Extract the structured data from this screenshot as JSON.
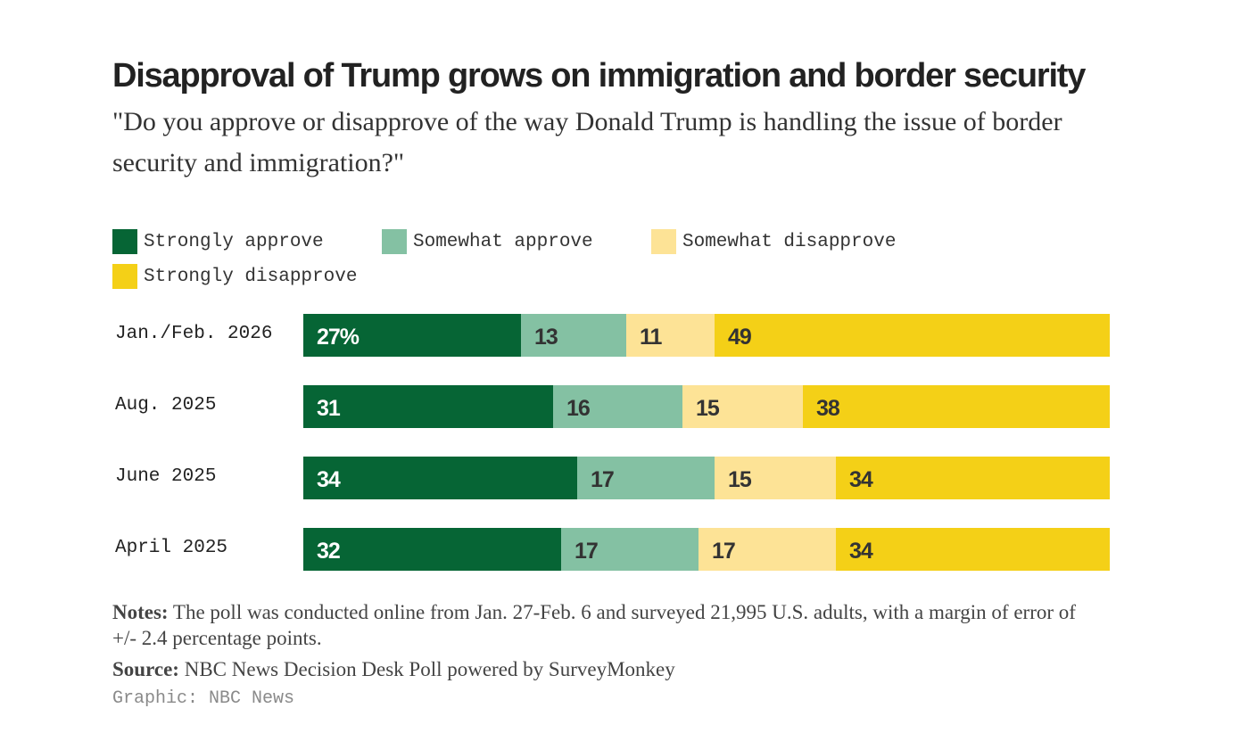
{
  "header": {
    "title": "Disapproval of Trump grows on immigration and border security",
    "subtitle": "\"Do you approve or disapprove of the way Donald Trump is handling the issue of border security and immigration?\""
  },
  "legend": {
    "items": [
      {
        "label": "Strongly approve",
        "color": "#066535"
      },
      {
        "label": "Somewhat approve",
        "color": "#84c1a3"
      },
      {
        "label": "Somewhat disapprove",
        "color": "#fde396"
      },
      {
        "label": "Strongly disapprove",
        "color": "#f4d017"
      }
    ]
  },
  "chart_data": {
    "type": "bar",
    "orientation": "horizontal",
    "stacked": true,
    "categories": [
      "Jan./Feb. 2026",
      "Aug. 2025",
      "June 2025",
      "April 2025"
    ],
    "series": [
      {
        "name": "Strongly approve",
        "color": "#066535",
        "values": [
          27,
          31,
          34,
          32
        ]
      },
      {
        "name": "Somewhat approve",
        "color": "#84c1a3",
        "values": [
          13,
          16,
          17,
          17
        ]
      },
      {
        "name": "Somewhat disapprove",
        "color": "#fde396",
        "values": [
          11,
          15,
          15,
          17
        ]
      },
      {
        "name": "Strongly disapprove",
        "color": "#f4d017",
        "values": [
          49,
          38,
          34,
          34
        ]
      }
    ],
    "data_labels": [
      [
        "27%",
        "13",
        "11",
        "49"
      ],
      [
        "31",
        "16",
        "15",
        "38"
      ],
      [
        "34",
        "17",
        "15",
        "34"
      ],
      [
        "32",
        "17",
        "17",
        "34"
      ]
    ],
    "xlim": [
      0,
      100
    ]
  },
  "footer": {
    "notes_label": "Notes:",
    "notes_text": " The poll was conducted online from Jan. 27-Feb. 6 and surveyed 21,995 U.S. adults, with a margin of error of +/- 2.4 percentage points.",
    "source_label": "Source:",
    "source_text": " NBC News Decision Desk Poll powered by SurveyMonkey",
    "credit": "Graphic: NBC News"
  }
}
